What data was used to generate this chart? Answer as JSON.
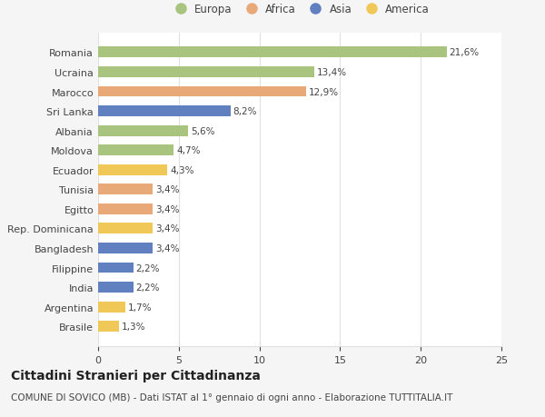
{
  "categories": [
    "Romania",
    "Ucraina",
    "Marocco",
    "Sri Lanka",
    "Albania",
    "Moldova",
    "Ecuador",
    "Tunisia",
    "Egitto",
    "Rep. Dominicana",
    "Bangladesh",
    "Filippine",
    "India",
    "Argentina",
    "Brasile"
  ],
  "values": [
    21.6,
    13.4,
    12.9,
    8.2,
    5.6,
    4.7,
    4.3,
    3.4,
    3.4,
    3.4,
    3.4,
    2.2,
    2.2,
    1.7,
    1.3
  ],
  "labels": [
    "21,6%",
    "13,4%",
    "12,9%",
    "8,2%",
    "5,6%",
    "4,7%",
    "4,3%",
    "3,4%",
    "3,4%",
    "3,4%",
    "3,4%",
    "2,2%",
    "2,2%",
    "1,7%",
    "1,3%"
  ],
  "continents": [
    "Europa",
    "Europa",
    "Africa",
    "Asia",
    "Europa",
    "Europa",
    "America",
    "Africa",
    "Africa",
    "America",
    "Asia",
    "Asia",
    "Asia",
    "America",
    "America"
  ],
  "continent_colors": {
    "Europa": "#a8c47e",
    "Africa": "#e8a878",
    "Asia": "#6080c0",
    "America": "#f0c858"
  },
  "legend_order": [
    "Europa",
    "Africa",
    "Asia",
    "America"
  ],
  "title": "Cittadini Stranieri per Cittadinanza",
  "subtitle": "COMUNE DI SOVICO (MB) - Dati ISTAT al 1° gennaio di ogni anno - Elaborazione TUTTITALIA.IT",
  "xlim": [
    0,
    25
  ],
  "xticks": [
    0,
    5,
    10,
    15,
    20,
    25
  ],
  "background_color": "#f5f5f5",
  "bar_background": "#ffffff",
  "grid_color": "#e0e0e0",
  "text_color": "#444444",
  "title_fontsize": 10,
  "subtitle_fontsize": 7.5,
  "label_fontsize": 7.5,
  "tick_fontsize": 8,
  "legend_fontsize": 8.5
}
